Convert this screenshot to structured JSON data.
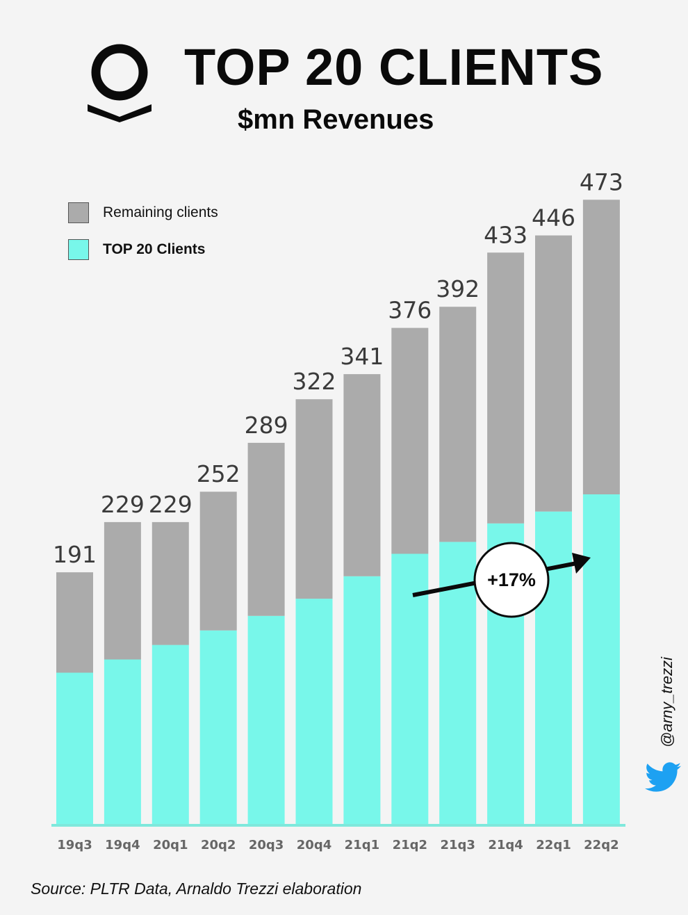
{
  "header": {
    "title": "TOP 20 CLIENTS",
    "subtitle": "$mn Revenues",
    "logo_icon": "palantir-logo-icon"
  },
  "legend": {
    "remaining_label": "Remaining clients",
    "top20_label": "TOP 20 Clients"
  },
  "colors": {
    "remaining": "#ababab",
    "top20": "#78f7ea",
    "baseline": "#7fe8dc",
    "arrow": "#0a0a0a",
    "twitter": "#1da1f2"
  },
  "annotation": {
    "label": "+17%"
  },
  "footer": {
    "source": "Source: PLTR Data, Arnaldo Trezzi elaboration",
    "handle": "@arny_trezzi",
    "twitter_icon": "twitter-bird-icon"
  },
  "chart_data": {
    "type": "bar",
    "stacked": true,
    "categories": [
      "19q3",
      "19q4",
      "20q1",
      "20q2",
      "20q3",
      "20q4",
      "21q1",
      "21q2",
      "21q3",
      "21q4",
      "22q1",
      "22q2"
    ],
    "totals": [
      191,
      229,
      229,
      252,
      289,
      322,
      341,
      376,
      392,
      433,
      446,
      473
    ],
    "series": [
      {
        "name": "TOP 20 Clients",
        "values": [
          115,
          125,
          136,
          147,
          158,
          171,
          188,
          205,
          214,
          228,
          237,
          250
        ]
      },
      {
        "name": "Remaining clients",
        "values": [
          76,
          104,
          93,
          105,
          131,
          151,
          153,
          171,
          178,
          205,
          209,
          223
        ]
      }
    ],
    "ylim": [
      0,
      520
    ],
    "grid": false,
    "legend_position": "top-left"
  }
}
